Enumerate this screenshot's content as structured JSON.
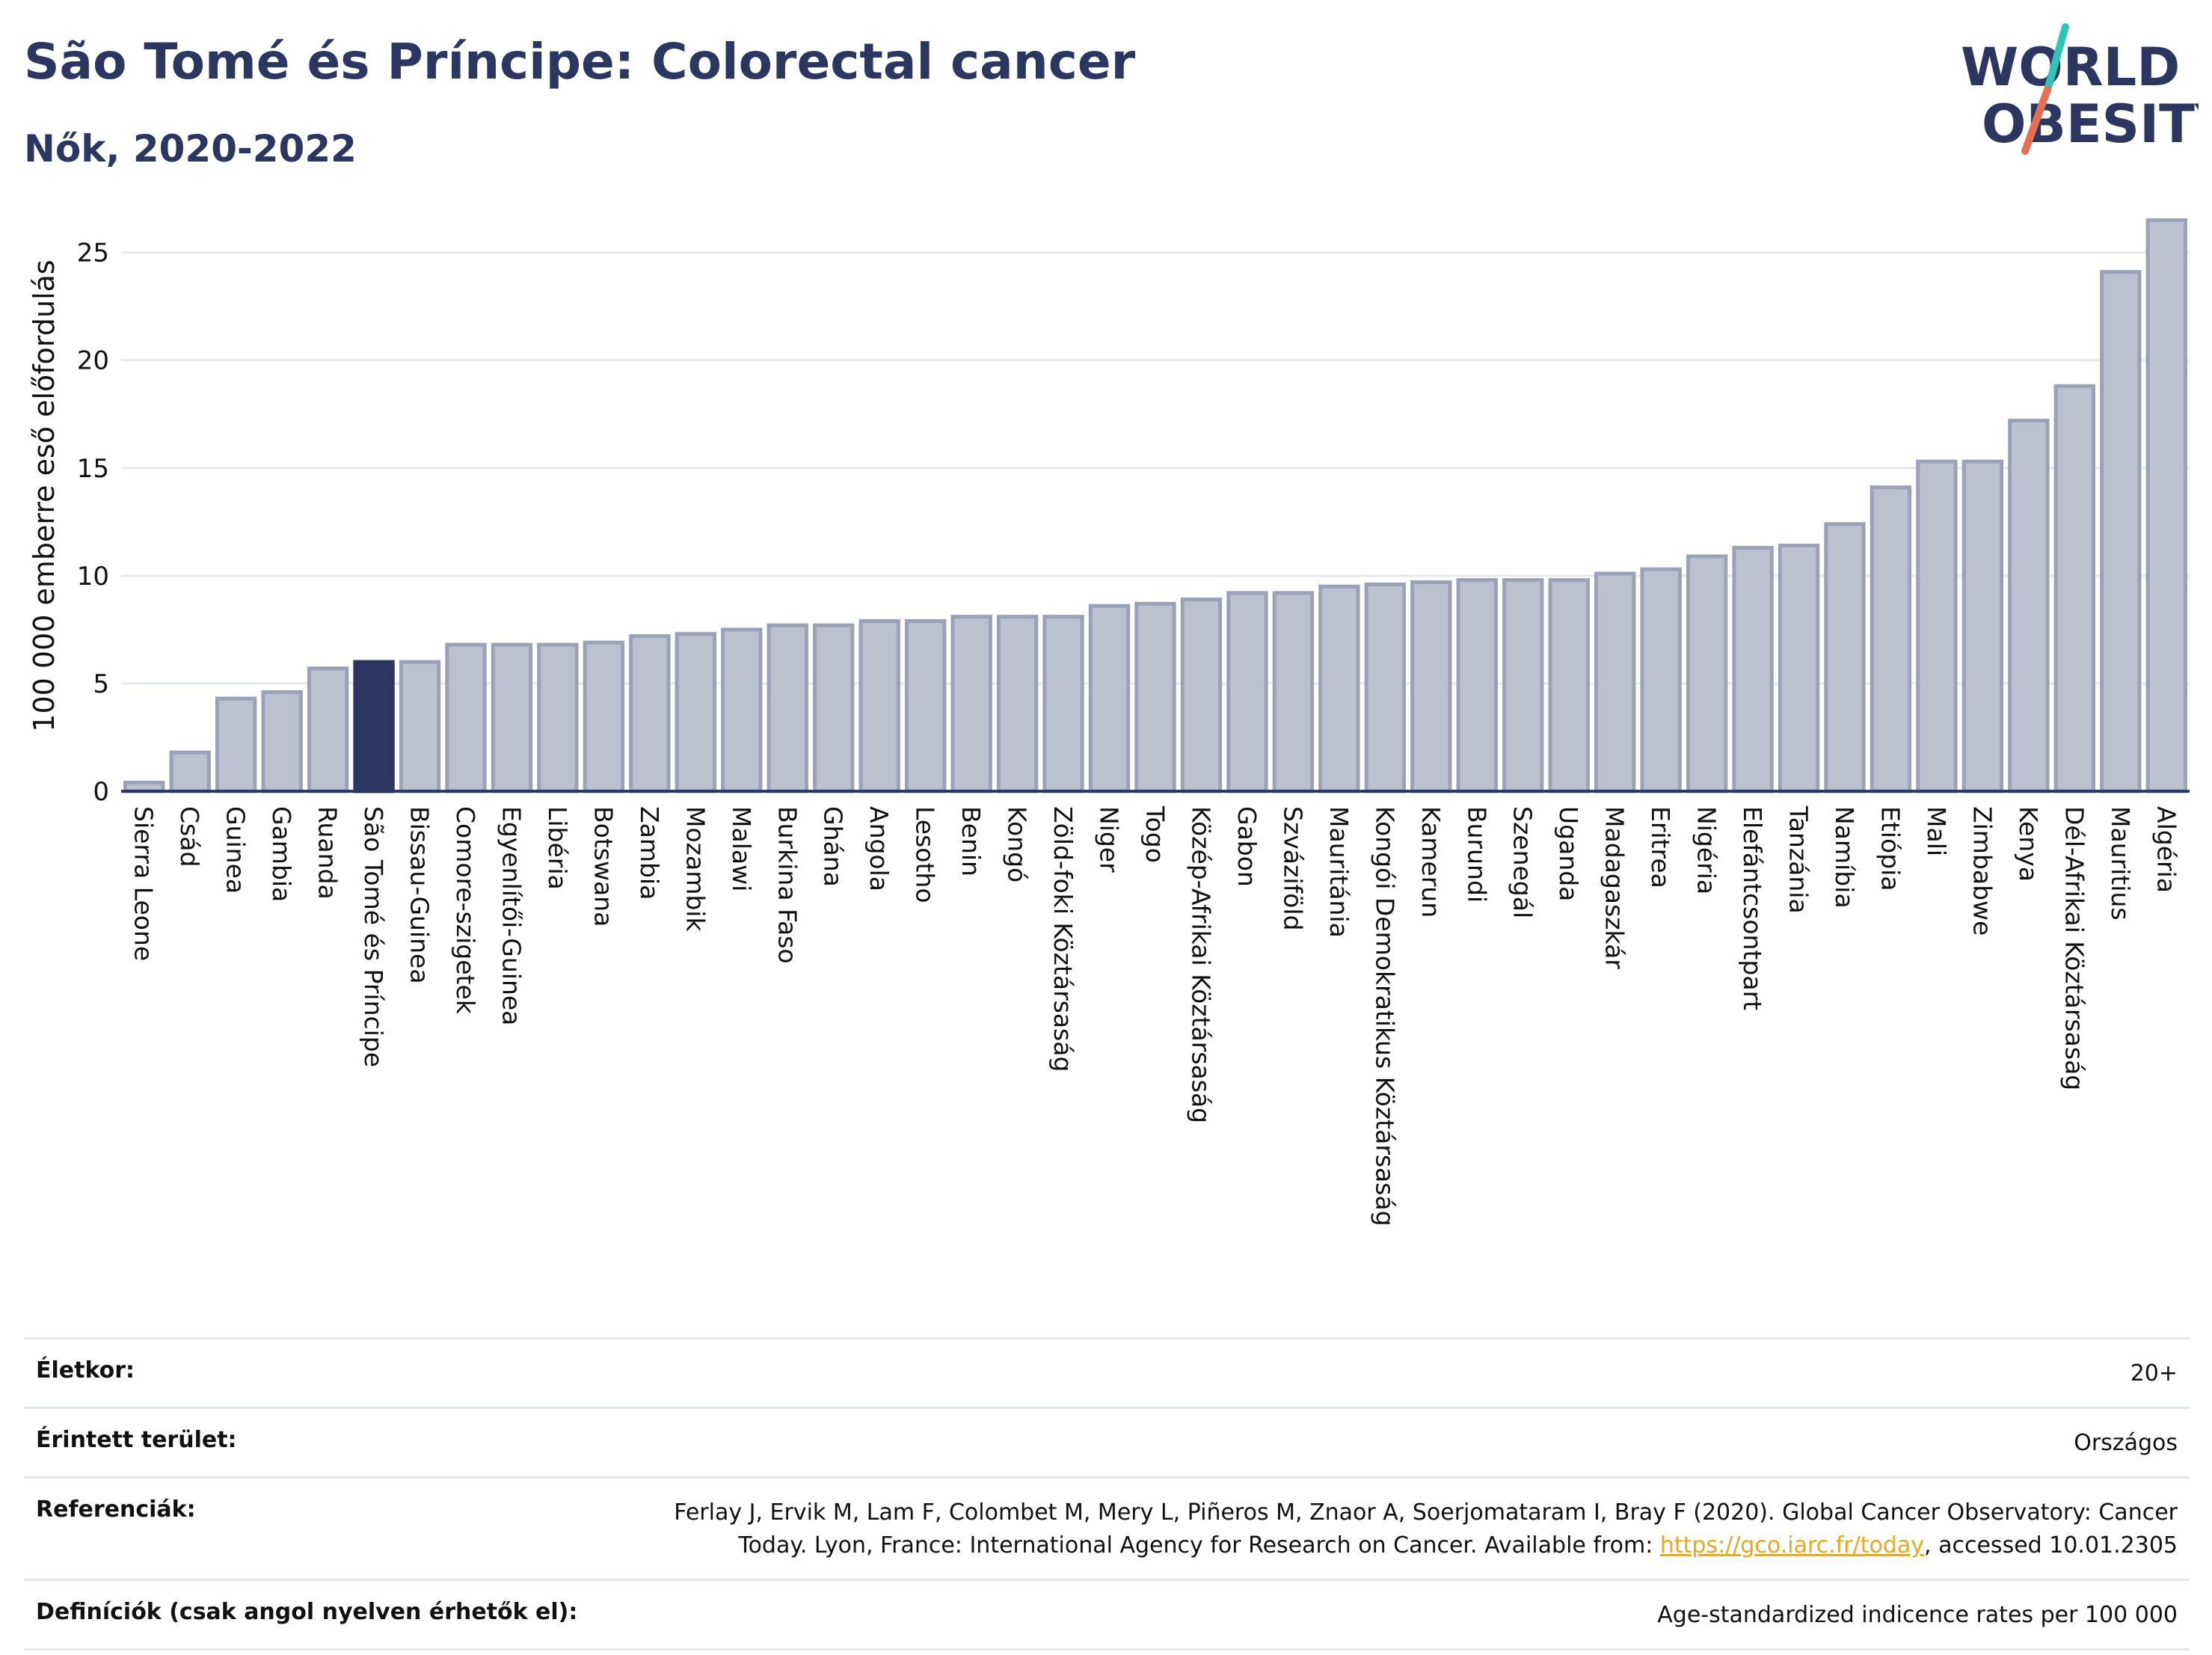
{
  "header": {
    "title": "São Tomé és Príncipe: Colorectal cancer",
    "subtitle": "Nők, 2020-2022"
  },
  "logo": {
    "line1": "WORLD",
    "line2": "OBESITY"
  },
  "chart_data": {
    "type": "bar",
    "ylabel": "100 000 emberre eső előfordulás",
    "ylim": [
      0,
      27
    ],
    "yticks": [
      0,
      5,
      10,
      15,
      20,
      25
    ],
    "grid": true,
    "highlight": "São Tomé és Príncipe",
    "colors": {
      "bar": "#bcc1d0",
      "bar_edge": "#9aa1b8",
      "highlight": "#2b3661",
      "axis": "#2b3661",
      "grid": "#e6e8ef"
    },
    "categories": [
      "Sierra Leone",
      "Csád",
      "Guinea",
      "Gambia",
      "Ruanda",
      "São Tomé és Príncipe",
      "Bissau-Guinea",
      "Comore-szigetek",
      "Egyenlítői-Guinea",
      "Libéria",
      "Botswana",
      "Zambia",
      "Mozambik",
      "Malawi",
      "Burkina Faso",
      "Ghána",
      "Angola",
      "Lesotho",
      "Benin",
      "Kongó",
      "Zöld-foki Köztársaság",
      "Niger",
      "Togo",
      "Közép-Afrikai Köztársaság",
      "Gabon",
      "Szváziföld",
      "Mauritánia",
      "Kongói Demokratikus Köztársaság",
      "Kamerun",
      "Burundi",
      "Szenegál",
      "Uganda",
      "Madagaszkár",
      "Eritrea",
      "Nigéria",
      "Elefántcsontpart",
      "Tanzánia",
      "Namíbia",
      "Etiópia",
      "Mali",
      "Zimbabwe",
      "Kenya",
      "Dél-Afrikai Köztársaság",
      "Mauritius",
      "Algéria"
    ],
    "values": [
      0.4,
      1.8,
      4.3,
      4.6,
      5.7,
      6.0,
      6.0,
      6.8,
      6.8,
      6.8,
      6.9,
      7.2,
      7.3,
      7.5,
      7.7,
      7.7,
      7.9,
      7.9,
      8.1,
      8.1,
      8.1,
      8.6,
      8.7,
      8.9,
      9.2,
      9.2,
      9.5,
      9.6,
      9.7,
      9.8,
      9.8,
      9.8,
      10.1,
      10.3,
      10.9,
      11.3,
      11.4,
      12.4,
      14.1,
      15.3,
      15.3,
      17.2,
      18.8,
      24.1,
      26.5
    ]
  },
  "meta": {
    "rows": [
      {
        "key": "Életkor:",
        "value": "20+"
      },
      {
        "key": "Érintett terület:",
        "value": "Országos"
      },
      {
        "key": "Referenciák:",
        "value": "Ferlay J, Ervik M, Lam F, Colombet M, Mery L, Piñeros M, Znaor A, Soerjomataram I, Bray F (2020). Global Cancer Observatory: Cancer Today. Lyon, France: International Agency for Research on Cancer. Available from: ",
        "link": "https://gco.iarc.fr/today",
        "suffix": ", accessed 10.01.2305"
      },
      {
        "key": "Definíciók (csak angol nyelven érhetők el):",
        "value": "Age-standardized indicence rates per 100 000"
      }
    ]
  }
}
